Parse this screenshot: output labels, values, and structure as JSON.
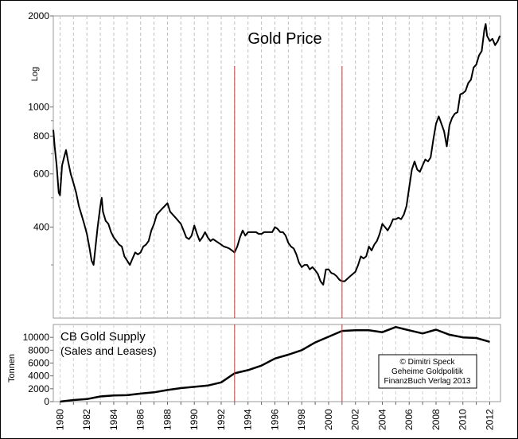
{
  "chart_data": [
    {
      "type": "line",
      "title": "Gold Price",
      "ylabel": "Log",
      "yscale": "log",
      "ylim": [
        200,
        2000
      ],
      "xlim": [
        1979.5,
        2012.8
      ],
      "yticks": [
        2000,
        1000,
        800,
        600,
        400
      ],
      "grid": "vertical dashed, one per year",
      "series": [
        {
          "color": "#000000",
          "points": [
            [
              1979.5,
              840
            ],
            [
              1979.6,
              740
            ],
            [
              1979.75,
              640
            ],
            [
              1979.9,
              520
            ],
            [
              1980.0,
              510
            ],
            [
              1980.15,
              640
            ],
            [
              1980.3,
              680
            ],
            [
              1980.45,
              720
            ],
            [
              1980.6,
              660
            ],
            [
              1980.8,
              600
            ],
            [
              1981.0,
              560
            ],
            [
              1981.2,
              520
            ],
            [
              1981.4,
              470
            ],
            [
              1981.6,
              440
            ],
            [
              1981.8,
              410
            ],
            [
              1982.0,
              380
            ],
            [
              1982.2,
              340
            ],
            [
              1982.35,
              310
            ],
            [
              1982.5,
              300
            ],
            [
              1982.6,
              330
            ],
            [
              1982.8,
              400
            ],
            [
              1983.0,
              470
            ],
            [
              1983.1,
              500
            ],
            [
              1983.2,
              450
            ],
            [
              1983.4,
              420
            ],
            [
              1983.6,
              410
            ],
            [
              1983.8,
              385
            ],
            [
              1984.0,
              370
            ],
            [
              1984.2,
              360
            ],
            [
              1984.4,
              350
            ],
            [
              1984.6,
              345
            ],
            [
              1984.8,
              320
            ],
            [
              1985.0,
              310
            ],
            [
              1985.2,
              300
            ],
            [
              1985.4,
              315
            ],
            [
              1985.6,
              330
            ],
            [
              1985.8,
              325
            ],
            [
              1986.0,
              330
            ],
            [
              1986.2,
              345
            ],
            [
              1986.4,
              350
            ],
            [
              1986.6,
              360
            ],
            [
              1986.8,
              390
            ],
            [
              1987.0,
              410
            ],
            [
              1987.2,
              440
            ],
            [
              1987.4,
              450
            ],
            [
              1987.6,
              460
            ],
            [
              1987.8,
              470
            ],
            [
              1988.0,
              480
            ],
            [
              1988.2,
              450
            ],
            [
              1988.4,
              440
            ],
            [
              1988.6,
              430
            ],
            [
              1988.8,
              420
            ],
            [
              1989.0,
              410
            ],
            [
              1989.2,
              390
            ],
            [
              1989.4,
              370
            ],
            [
              1989.6,
              365
            ],
            [
              1989.8,
              375
            ],
            [
              1990.0,
              405
            ],
            [
              1990.2,
              380
            ],
            [
              1990.4,
              360
            ],
            [
              1990.6,
              370
            ],
            [
              1990.8,
              385
            ],
            [
              1991.0,
              370
            ],
            [
              1991.2,
              360
            ],
            [
              1991.4,
              365
            ],
            [
              1991.6,
              360
            ],
            [
              1991.8,
              355
            ],
            [
              1992.0,
              350
            ],
            [
              1992.2,
              345
            ],
            [
              1992.4,
              343
            ],
            [
              1992.6,
              340
            ],
            [
              1992.8,
              335
            ],
            [
              1993.0,
              330
            ],
            [
              1993.2,
              345
            ],
            [
              1993.4,
              370
            ],
            [
              1993.6,
              390
            ],
            [
              1993.8,
              375
            ],
            [
              1994.0,
              385
            ],
            [
              1994.2,
              385
            ],
            [
              1994.4,
              385
            ],
            [
              1994.6,
              385
            ],
            [
              1994.8,
              380
            ],
            [
              1995.0,
              380
            ],
            [
              1995.2,
              385
            ],
            [
              1995.4,
              385
            ],
            [
              1995.6,
              385
            ],
            [
              1995.8,
              385
            ],
            [
              1996.0,
              400
            ],
            [
              1996.2,
              395
            ],
            [
              1996.4,
              385
            ],
            [
              1996.6,
              385
            ],
            [
              1996.8,
              375
            ],
            [
              1997.0,
              355
            ],
            [
              1997.2,
              345
            ],
            [
              1997.4,
              340
            ],
            [
              1997.6,
              325
            ],
            [
              1997.8,
              305
            ],
            [
              1998.0,
              295
            ],
            [
              1998.2,
              300
            ],
            [
              1998.4,
              300
            ],
            [
              1998.6,
              290
            ],
            [
              1998.8,
              295
            ],
            [
              1999.0,
              288
            ],
            [
              1999.2,
              280
            ],
            [
              1999.4,
              265
            ],
            [
              1999.6,
              258
            ],
            [
              1999.8,
              290
            ],
            [
              2000.0,
              290
            ],
            [
              2000.2,
              282
            ],
            [
              2000.4,
              280
            ],
            [
              2000.6,
              275
            ],
            [
              2000.8,
              268
            ],
            [
              2001.0,
              265
            ],
            [
              2001.2,
              265
            ],
            [
              2001.4,
              270
            ],
            [
              2001.6,
              275
            ],
            [
              2001.8,
              280
            ],
            [
              2002.0,
              285
            ],
            [
              2002.2,
              300
            ],
            [
              2002.4,
              320
            ],
            [
              2002.6,
              315
            ],
            [
              2002.8,
              320
            ],
            [
              2003.0,
              345
            ],
            [
              2003.2,
              335
            ],
            [
              2003.4,
              350
            ],
            [
              2003.6,
              360
            ],
            [
              2003.8,
              380
            ],
            [
              2004.0,
              410
            ],
            [
              2004.2,
              400
            ],
            [
              2004.4,
              390
            ],
            [
              2004.6,
              405
            ],
            [
              2004.8,
              425
            ],
            [
              2005.0,
              425
            ],
            [
              2005.2,
              430
            ],
            [
              2005.4,
              425
            ],
            [
              2005.6,
              440
            ],
            [
              2005.8,
              470
            ],
            [
              2006.0,
              540
            ],
            [
              2006.2,
              620
            ],
            [
              2006.4,
              660
            ],
            [
              2006.6,
              620
            ],
            [
              2006.8,
              610
            ],
            [
              2007.0,
              640
            ],
            [
              2007.2,
              670
            ],
            [
              2007.4,
              660
            ],
            [
              2007.6,
              680
            ],
            [
              2007.8,
              780
            ],
            [
              2008.0,
              880
            ],
            [
              2008.2,
              930
            ],
            [
              2008.4,
              880
            ],
            [
              2008.6,
              830
            ],
            [
              2008.8,
              740
            ],
            [
              2009.0,
              870
            ],
            [
              2009.2,
              920
            ],
            [
              2009.4,
              950
            ],
            [
              2009.6,
              960
            ],
            [
              2009.8,
              1100
            ],
            [
              2010.0,
              1110
            ],
            [
              2010.2,
              1130
            ],
            [
              2010.4,
              1200
            ],
            [
              2010.6,
              1230
            ],
            [
              2010.8,
              1350
            ],
            [
              2011.0,
              1380
            ],
            [
              2011.2,
              1480
            ],
            [
              2011.4,
              1530
            ],
            [
              2011.6,
              1800
            ],
            [
              2011.7,
              1880
            ],
            [
              2011.8,
              1720
            ],
            [
              2012.0,
              1650
            ],
            [
              2012.2,
              1680
            ],
            [
              2012.4,
              1600
            ],
            [
              2012.6,
              1650
            ],
            [
              2012.75,
              1720
            ]
          ]
        }
      ]
    },
    {
      "type": "line",
      "title": "CB Gold Supply",
      "subtitle": "(Sales and Leases)",
      "ylabel": "Tonnen",
      "ylim": [
        0,
        12000
      ],
      "yticks": [
        0,
        2000,
        4000,
        6000,
        8000,
        10000
      ],
      "xlim": [
        1979.5,
        2012.8
      ],
      "x_tick_labels": [
        "1980",
        "1982",
        "1984",
        "1986",
        "1988",
        "1990",
        "1992",
        "1994",
        "1996",
        "1998",
        "2000",
        "2002",
        "2004",
        "2006",
        "2008",
        "2010",
        "2012"
      ],
      "series": [
        {
          "color": "#000000",
          "x": [
            1980,
            1981,
            1982,
            1983,
            1984,
            1985,
            1986,
            1987,
            1988,
            1989,
            1990,
            1991,
            1992,
            1993,
            1994,
            1995,
            1996,
            1997,
            1998,
            1999,
            2000,
            2001,
            2002,
            2003,
            2004,
            2005,
            2006,
            2007,
            2008,
            2009,
            2010,
            2011,
            2012
          ],
          "y": [
            0,
            250,
            400,
            800,
            950,
            1000,
            1250,
            1450,
            1800,
            2100,
            2300,
            2500,
            3000,
            4400,
            4900,
            5600,
            6700,
            7300,
            8000,
            9200,
            10100,
            11000,
            11100,
            11100,
            10800,
            11600,
            11100,
            10600,
            11200,
            10400,
            10000,
            9900,
            9300
          ]
        }
      ]
    }
  ],
  "markers": {
    "years": [
      1993,
      2001
    ],
    "color": "#e03030"
  },
  "credit": [
    "© Dimitri Speck",
    "Geheime Goldpolitik",
    "FinanzBuch Verlag 2013"
  ]
}
